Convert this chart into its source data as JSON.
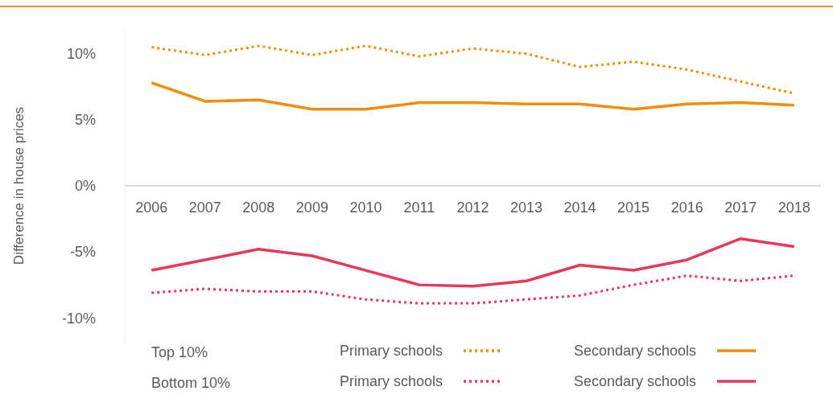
{
  "chart_data": {
    "type": "line",
    "ylabel": "Difference in house prices",
    "categories": [
      "2006",
      "2007",
      "2008",
      "2009",
      "2010",
      "2011",
      "2012",
      "2013",
      "2014",
      "2015",
      "2016",
      "2017",
      "2018"
    ],
    "series": [
      {
        "name": "Primary schools",
        "color": "#f28c00",
        "line_style": "dotted",
        "values": [
          10.5,
          9.9,
          10.6,
          9.9,
          10.6,
          9.8,
          10.4,
          10.0,
          9.0,
          9.4,
          8.8,
          7.9,
          7.0
        ]
      },
      {
        "name": "Secondary schools",
        "color": "#f28c00",
        "line_style": "solid",
        "values": [
          7.8,
          6.4,
          6.5,
          5.8,
          5.8,
          6.3,
          6.3,
          6.2,
          6.2,
          5.8,
          6.2,
          6.3,
          6.1
        ]
      },
      {
        "name": "Primary schools",
        "color": "#e8375a",
        "line_style": "dotted",
        "values": [
          -8.1,
          -7.8,
          -8.0,
          -8.0,
          -8.6,
          -8.9,
          -8.9,
          -8.6,
          -8.3,
          -7.5,
          -6.8,
          -7.2,
          -6.8
        ]
      },
      {
        "name": "Secondary schools",
        "color": "#e8375a",
        "line_style": "solid",
        "values": [
          -6.4,
          -5.6,
          -4.8,
          -5.3,
          -6.4,
          -7.5,
          -7.6,
          -7.2,
          -6.0,
          -6.4,
          -5.6,
          -4.0,
          -4.6
        ]
      }
    ],
    "ylim": [
      -12,
      12
    ],
    "yticks": [
      {
        "value": -10,
        "label": "-10%"
      },
      {
        "value": -5,
        "label": "-5%"
      },
      {
        "value": 0,
        "label": "0%"
      },
      {
        "value": 5,
        "label": "5%"
      },
      {
        "value": 10,
        "label": "10%"
      }
    ],
    "annotations": [
      "Top 10%",
      "Bottom 10%"
    ],
    "grid": false,
    "marker": "none",
    "legend": "bottom"
  }
}
